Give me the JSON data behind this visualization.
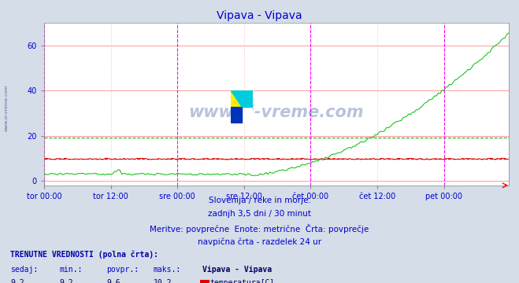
{
  "title": "Vipava - Vipava",
  "bg_color": "#d4dde8",
  "plot_bg_color": "#ffffff",
  "grid_color_h": "#ff9999",
  "grid_color_v": "#ffcccc",
  "vline_color": "#ff00ff",
  "xlabel_color": "#0000cc",
  "ylabel_ticks": [
    0,
    20,
    40,
    60
  ],
  "ylim": [
    -2,
    70
  ],
  "n_points": 252,
  "temp_min": 9.2,
  "temp_max": 10.2,
  "temp_avg": 9.6,
  "temp_now": 9.2,
  "flow_min": 2.6,
  "flow_max": 65.9,
  "flow_avg": 19.1,
  "flow_now": 65.9,
  "tick_labels": [
    "tor 00:00",
    "tor 12:00",
    "sre 00:00",
    "sre 12:00",
    "čet 00:00",
    "čet 12:00",
    "pet 00:00"
  ],
  "subtitle_line1": "Slovenija / reke in morje.",
  "subtitle_line2": "zadnjh 3,5 dni / 30 minut",
  "subtitle_line3": "Meritve: povprečne  Enote: metrične  Črta: povprečje",
  "subtitle_line4": "navpična črta - razdelek 24 ur",
  "legend_title": "Vipava - Vipava",
  "temp_color": "#dd0000",
  "flow_color": "#00bb00",
  "watermark_color": "#1a3a8a",
  "avg_line_color_green": "#00bb00",
  "avg_line_color_red": "#dd0000",
  "info_label_color": "#0000cc",
  "info_value_color": "#000066",
  "info_header_color": "#0000aa"
}
